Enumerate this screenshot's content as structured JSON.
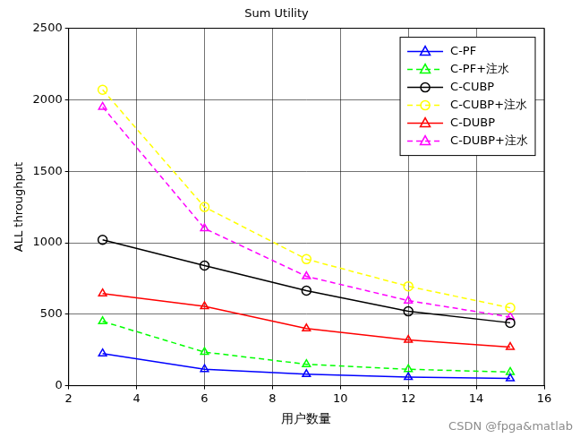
{
  "chart_data": {
    "type": "line",
    "title": "Sum Utility",
    "x_label": "用户数量",
    "y_label": "ALL throughput",
    "x": [
      3,
      6,
      9,
      12,
      15
    ],
    "series": [
      {
        "name": "C-PF",
        "color": "#0000ff",
        "marker": "triangle",
        "line_style": "solid",
        "values": [
          225,
          115,
          80,
          60,
          50
        ]
      },
      {
        "name": "C-PF+注水",
        "color": "#00ff00",
        "marker": "triangle",
        "line_style": "dashed",
        "values": [
          450,
          235,
          150,
          115,
          95
        ]
      },
      {
        "name": "C-CUBP",
        "color": "#000000",
        "marker": "circle",
        "line_style": "solid",
        "values": [
          1020,
          840,
          665,
          520,
          440
        ]
      },
      {
        "name": "C-CUBP+注水",
        "color": "#ffff00",
        "marker": "circle",
        "line_style": "dashed",
        "values": [
          2070,
          1250,
          885,
          695,
          545
        ]
      },
      {
        "name": "C-DUBP",
        "color": "#ff0000",
        "marker": "triangle",
        "line_style": "solid",
        "values": [
          645,
          555,
          400,
          320,
          270
        ]
      },
      {
        "name": "C-DUBP+注水",
        "color": "#ff00ff",
        "marker": "triangle",
        "line_style": "dashed",
        "values": [
          1950,
          1100,
          765,
          595,
          480
        ]
      }
    ],
    "xlim": [
      2,
      16
    ],
    "xticks": [
      2,
      4,
      6,
      8,
      10,
      12,
      14,
      16
    ],
    "ylim": [
      0,
      2500
    ],
    "yticks": [
      0,
      500,
      1000,
      1500,
      2000,
      2500
    ],
    "grid": true,
    "legend": "upper right",
    "annotations": [
      "CSDN @fpga&matlab"
    ]
  }
}
